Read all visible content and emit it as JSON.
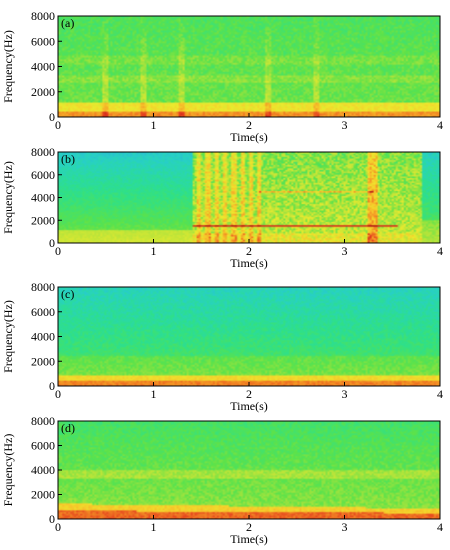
{
  "chart_data": [
    {
      "type": "heatmap",
      "panel_label": "(a)",
      "xlabel": "Time(s)",
      "ylabel": "Frequency(Hz)",
      "xlim": [
        0,
        4
      ],
      "ylim": [
        0,
        8000
      ],
      "xticks": [
        "0",
        "1",
        "2",
        "3",
        "4"
      ],
      "yticks": [
        "0",
        "2000",
        "4000",
        "6000",
        "8000"
      ],
      "colormap": [
        "#2a9ad8",
        "#27d0c8",
        "#2ee08a",
        "#5ce24a",
        "#b8e43a",
        "#ecea2e",
        "#f7c52a",
        "#f28a24",
        "#e33a1e",
        "#b11414"
      ],
      "low_freq_band_hz": [
        0,
        1000
      ],
      "vertical_streaks_s": [
        0.5,
        0.9,
        1.3,
        2.2,
        2.7
      ]
    },
    {
      "type": "heatmap",
      "panel_label": "(b)",
      "xlabel": "Time(s)",
      "ylabel": "Frequency(Hz)",
      "xlim": [
        0,
        4
      ],
      "ylim": [
        0,
        8000
      ],
      "xticks": [
        "0",
        "1",
        "2",
        "3",
        "4"
      ],
      "yticks": [
        "0",
        "2000",
        "4000",
        "6000",
        "8000"
      ],
      "colormap": [
        "#2a9ad8",
        "#27d0c8",
        "#2ee08a",
        "#5ce24a",
        "#b8e43a",
        "#ecea2e",
        "#f7c52a",
        "#f28a24",
        "#e33a1e",
        "#b11414"
      ],
      "active_segment_s": [
        1.42,
        3.45
      ],
      "harmonic_line_hz": 1500,
      "upper_line_hz": 4500
    },
    {
      "type": "heatmap",
      "panel_label": "(c)",
      "xlabel": "Time(s)",
      "ylabel": "Frequency(Hz)",
      "xlim": [
        0,
        4
      ],
      "ylim": [
        0,
        8000
      ],
      "xticks": [
        "0",
        "1",
        "2",
        "3",
        "4"
      ],
      "yticks": [
        "0",
        "2000",
        "4000",
        "6000",
        "8000"
      ],
      "colormap": [
        "#2a9ad8",
        "#27d0c8",
        "#2ee08a",
        "#5ce24a",
        "#b8e43a",
        "#ecea2e",
        "#f7c52a",
        "#f28a24",
        "#e33a1e",
        "#b11414"
      ],
      "low_freq_band_hz": [
        0,
        900
      ]
    },
    {
      "type": "heatmap",
      "panel_label": "(d)",
      "xlabel": "Time(s)",
      "ylabel": "Frequency(Hz)",
      "xlim": [
        0,
        4
      ],
      "ylim": [
        0,
        8000
      ],
      "xticks": [
        "0",
        "1",
        "2",
        "3",
        "4"
      ],
      "yticks": [
        "0",
        "2000",
        "4000",
        "6000",
        "8000"
      ],
      "colormap": [
        "#2a9ad8",
        "#27d0c8",
        "#2ee08a",
        "#5ce24a",
        "#b8e43a",
        "#ecea2e",
        "#f7c52a",
        "#f28a24",
        "#e33a1e",
        "#b11414"
      ],
      "low_freq_band_hz": [
        0,
        1200
      ]
    }
  ]
}
